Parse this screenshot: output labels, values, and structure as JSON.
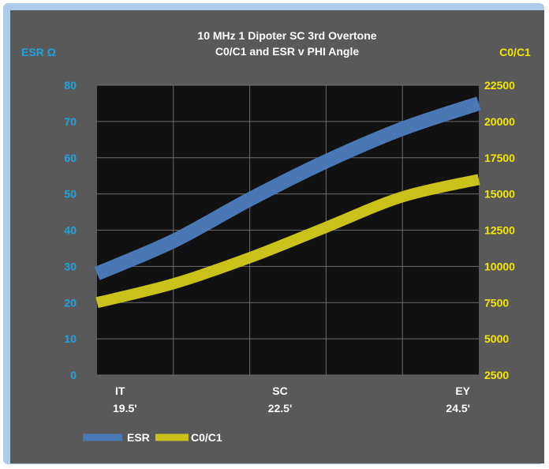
{
  "colors": {
    "esr": "#4a78b5",
    "c0c1": "#c8c21a",
    "left_axis_text": "#1fa3dd",
    "right_axis_text": "#f2e600",
    "plot_bg": "#111111",
    "panel_bg": "#595959"
  },
  "chart_data": {
    "type": "line",
    "title": [
      "10 MHz 1 Dipoter SC 3rd Overtone",
      "C0/C1 and ESR v PHI Angle"
    ],
    "y_left_label": "ESR Ω",
    "y_right_label": "C0/C1",
    "x_ticks": [
      {
        "top": "IT",
        "bottom": "19.5'"
      },
      {
        "top": "SC",
        "bottom": "22.5'"
      },
      {
        "top": "EY",
        "bottom": "24.5'"
      }
    ],
    "y_left_ticks": [
      "80",
      "70",
      "60",
      "50",
      "40",
      "30",
      "20",
      "10",
      "0"
    ],
    "y_right_ticks": [
      "22500",
      "20000",
      "17500",
      "15000",
      "12500",
      "10000",
      "7500",
      "5000",
      "2500"
    ],
    "ylim_left": [
      0,
      80
    ],
    "ylim_right": [
      2500,
      22500
    ],
    "grid": true,
    "legend_position": "bottom-left",
    "x_positions": [
      0,
      0.2,
      0.4,
      0.6,
      0.8,
      1.0
    ],
    "series": [
      {
        "name": "ESR",
        "axis": "left",
        "values": [
          28,
          37,
          48.5,
          59,
          68,
          75
        ]
      },
      {
        "name": "C0/C1",
        "axis": "right",
        "values": [
          7500,
          8800,
          10600,
          12700,
          14800,
          16000
        ]
      }
    ]
  }
}
